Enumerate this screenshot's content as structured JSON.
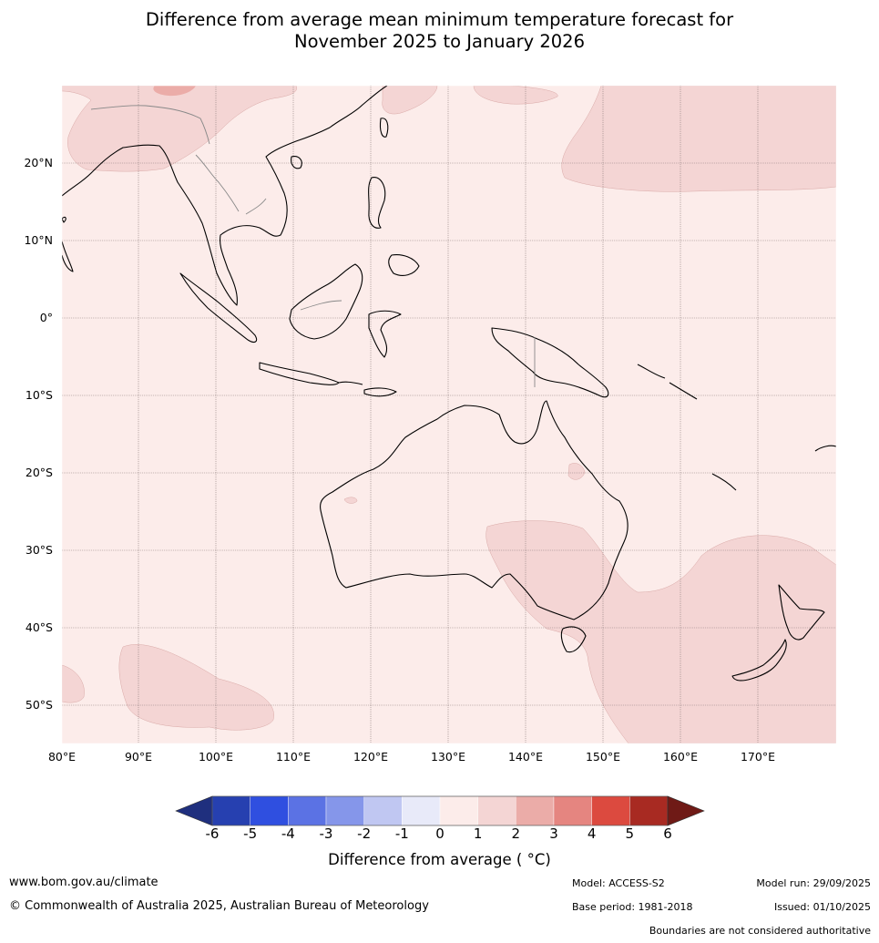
{
  "title": {
    "line1": "Difference from average mean minimum temperature forecast for",
    "line2": "November 2025 to January 2026"
  },
  "map": {
    "lon_ticks": [
      "80°E",
      "90°E",
      "100°E",
      "110°E",
      "120°E",
      "130°E",
      "140°E",
      "150°E",
      "160°E",
      "170°E"
    ],
    "lat_ticks": [
      "20°N",
      "10°N",
      "0°",
      "10°S",
      "20°S",
      "30°S",
      "40°S",
      "50°S"
    ],
    "base_anomaly_class": "0 to 1",
    "warm_region_class": "1 to 2"
  },
  "colorbar": {
    "labels": [
      "-6",
      "-5",
      "-4",
      "-3",
      "-2",
      "-1",
      "0",
      "1",
      "2",
      "3",
      "4",
      "5",
      "6"
    ],
    "colors": [
      "#1f2f7e",
      "#2640b0",
      "#2f4fe0",
      "#5b72e4",
      "#8596ea",
      "#c0c7f2",
      "#e8eaf9",
      "#fcecea",
      "#f4d5d4",
      "#ebaca8",
      "#e58580",
      "#dc4a3f",
      "#a82a22",
      "#6f1a16"
    ],
    "title": "Difference from average ( °C)"
  },
  "footer": {
    "website": "www.bom.gov.au/climate",
    "copyright": "© Commonwealth of Australia 2025, Australian Bureau of Meteorology",
    "model": "Model: ACCESS-S2",
    "base_period": "Base period: 1981-2018",
    "model_run": "Model run: 29/09/2025",
    "issued": "Issued: 01/10/2025",
    "disclaimer": "Boundaries are not considered authoritative"
  }
}
